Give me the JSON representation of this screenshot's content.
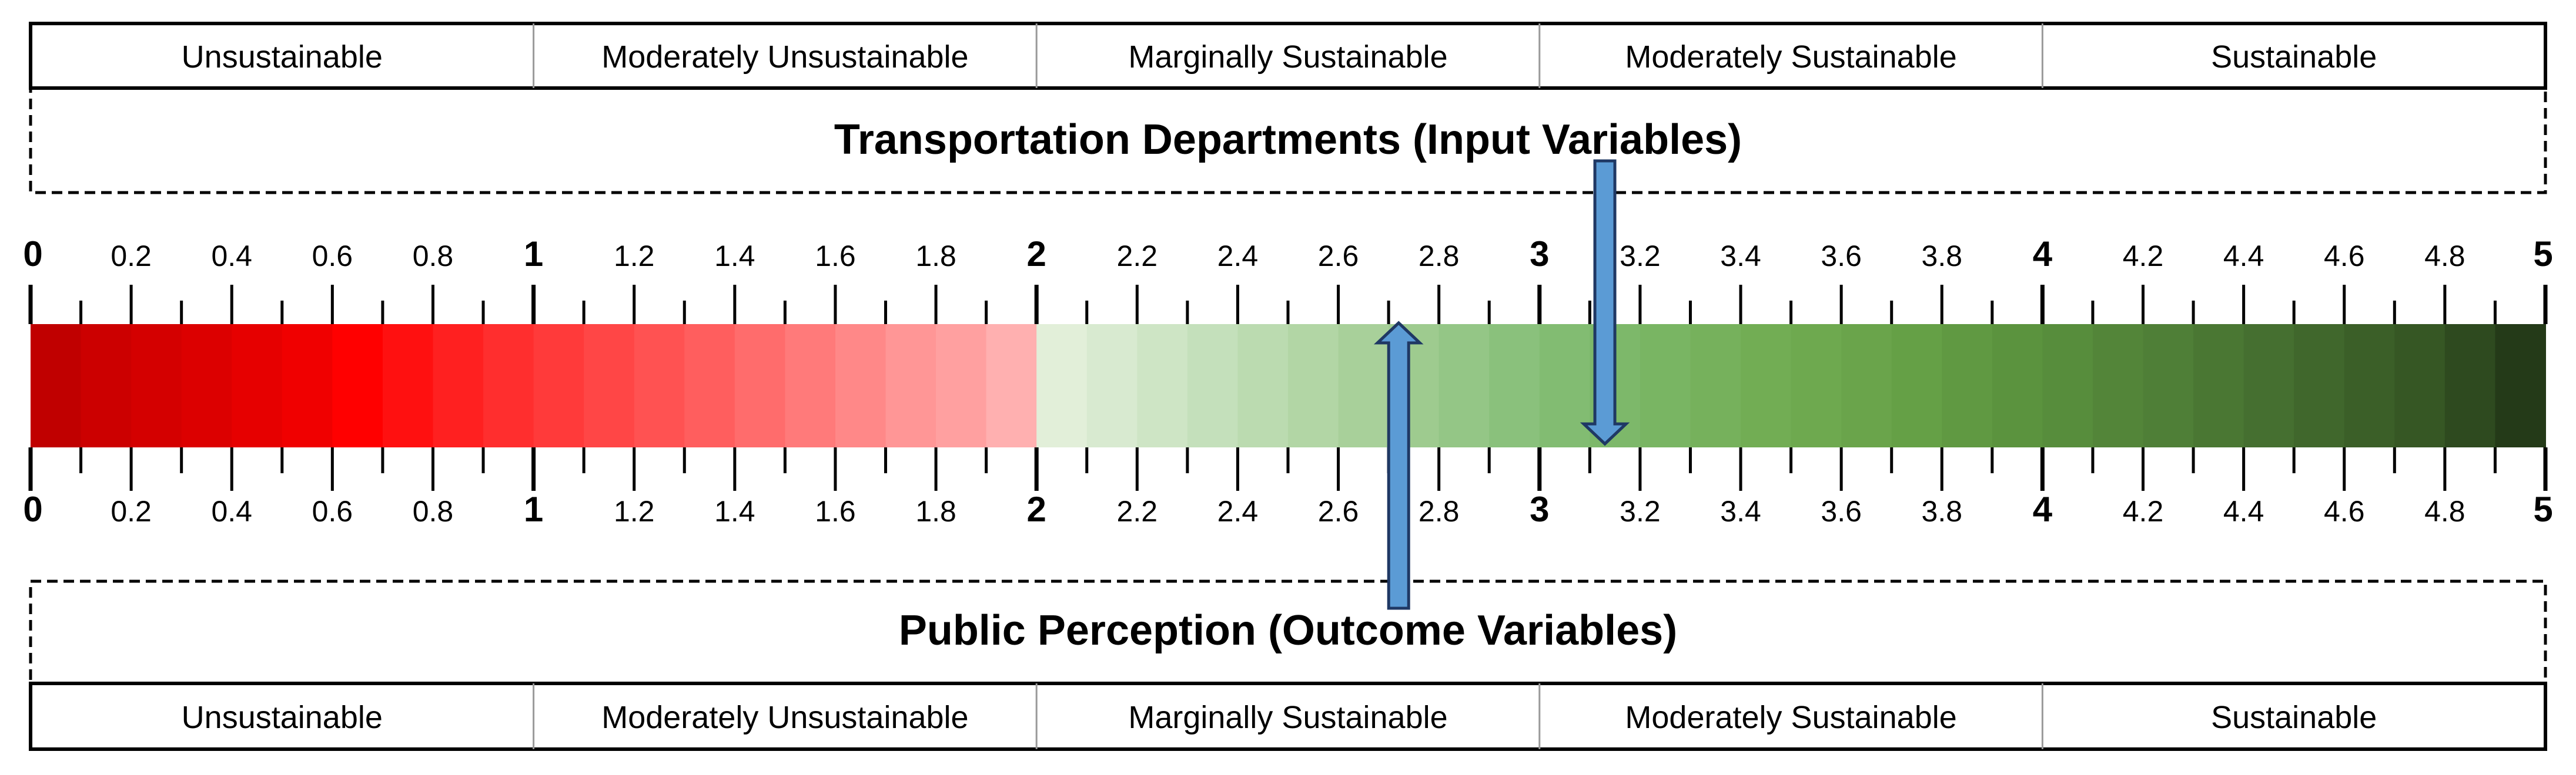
{
  "scale": {
    "min": 0,
    "max": 5,
    "step": 0.1,
    "major_ticks": [
      0,
      1,
      2,
      3,
      4,
      5
    ],
    "tick_labels": [
      "0",
      "0.2",
      "0.4",
      "0.6",
      "0.8",
      "1",
      "1.2",
      "1.4",
      "1.6",
      "1.8",
      "2",
      "2.2",
      "2.4",
      "2.6",
      "2.8",
      "3",
      "3.2",
      "3.4",
      "3.6",
      "3.8",
      "4",
      "4.2",
      "4.4",
      "4.6",
      "4.8",
      "5"
    ]
  },
  "categories": [
    "Unsustainable",
    "Moderately Unsustainable",
    "Marginally Sustainable",
    "Moderately Sustainable",
    "Sustainable"
  ],
  "top_panel": {
    "title": "Transportation Departments (Input Variables)"
  },
  "bottom_panel": {
    "title": "Public Perception (Outcome Variables)"
  },
  "markers": {
    "input_value": 3.13,
    "outcome_value": 2.72
  },
  "colors": {
    "gradient": [
      "#c00000",
      "#cc0000",
      "#d40000",
      "#dc0000",
      "#e60000",
      "#f00000",
      "#ff0000",
      "#ff1010",
      "#ff2020",
      "#ff2e2e",
      "#ff3a3a",
      "#ff4646",
      "#ff5252",
      "#ff5e5e",
      "#ff6c6c",
      "#ff7a7a",
      "#ff8888",
      "#ff9696",
      "#ffa0a0",
      "#ffb0b0",
      "#e2efd9",
      "#d8ead0",
      "#cee5c5",
      "#c4e0bb",
      "#bbdbb0",
      "#b2d6a5",
      "#a8d09a",
      "#9ecb8f",
      "#94c686",
      "#8ac17c",
      "#82bc72",
      "#7db86a",
      "#79b563",
      "#76b15c",
      "#72ad54",
      "#6ea94f",
      "#6aa44b",
      "#65a046",
      "#609942",
      "#5b933e",
      "#578d3c",
      "#538539",
      "#4f7f37",
      "#4a7733",
      "#456f30",
      "#40672c",
      "#3b5f28",
      "#365724",
      "#2e4a1f",
      "#243a18"
    ],
    "arrow_fill": "#5b9bd5",
    "arrow_stroke": "#1f3864"
  }
}
